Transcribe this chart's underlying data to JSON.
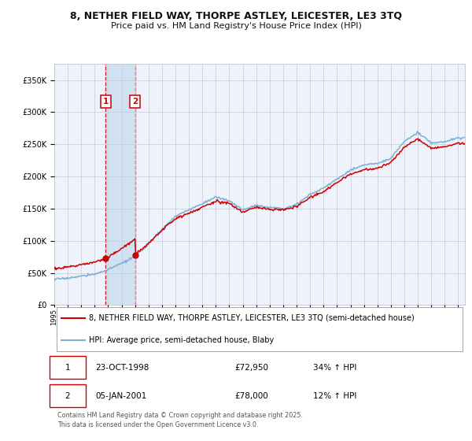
{
  "title1": "8, NETHER FIELD WAY, THORPE ASTLEY, LEICESTER, LE3 3TQ",
  "title2": "Price paid vs. HM Land Registry's House Price Index (HPI)",
  "legend_line1": "8, NETHER FIELD WAY, THORPE ASTLEY, LEICESTER, LE3 3TQ (semi-detached house)",
  "legend_line2": "HPI: Average price, semi-detached house, Blaby",
  "transaction1_date": "23-OCT-1998",
  "transaction1_price": "£72,950",
  "transaction1_hpi": "34% ↑ HPI",
  "transaction1_year": 1998.81,
  "transaction1_value": 72950,
  "transaction2_date": "05-JAN-2001",
  "transaction2_price": "£78,000",
  "transaction2_hpi": "12% ↑ HPI",
  "transaction2_year": 2001.01,
  "transaction2_value": 78000,
  "footer": "Contains HM Land Registry data © Crown copyright and database right 2025.\nThis data is licensed under the Open Government Licence v3.0.",
  "price_color": "#cc0000",
  "hpi_color": "#7bafd4",
  "background_color": "#ffffff",
  "plot_bg_color": "#eef2fa",
  "grid_color": "#c8c8d8",
  "highlight_color": "#cddff0",
  "ylim_max": 375000,
  "ylim_min": 0,
  "hpi_years": [
    1995,
    1996,
    1997,
    1998,
    1999,
    2000,
    2001,
    2002,
    2003,
    2004,
    2005,
    2006,
    2007,
    2008,
    2009,
    2010,
    2011,
    2012,
    2013,
    2014,
    2015,
    2016,
    2017,
    2018,
    2019,
    2020,
    2021,
    2022,
    2023,
    2024,
    2025
  ],
  "hpi_prices": [
    40000,
    42000,
    45000,
    48000,
    55000,
    65000,
    75000,
    95000,
    118000,
    138000,
    148000,
    158000,
    168000,
    162000,
    148000,
    155000,
    152000,
    150000,
    157000,
    172000,
    182000,
    196000,
    210000,
    218000,
    220000,
    228000,
    255000,
    268000,
    252000,
    254000,
    260000
  ],
  "price_hpi_index": [
    48,
    50,
    53,
    56,
    63,
    74,
    87,
    107,
    130,
    150,
    160,
    170,
    180,
    177,
    162,
    170,
    167,
    165,
    172,
    187,
    197,
    213,
    228,
    235,
    238,
    248,
    274,
    289,
    273,
    275,
    281
  ]
}
